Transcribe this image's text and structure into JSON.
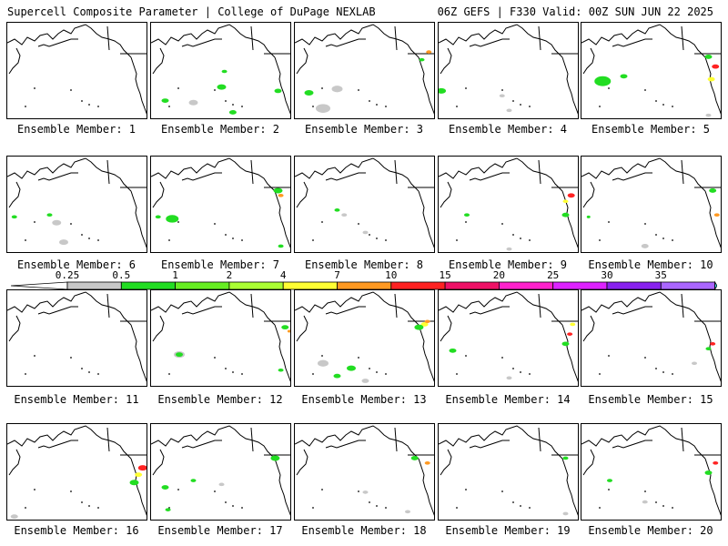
{
  "header": {
    "left": "Supercell Composite Parameter | College of DuPage NEXLAB",
    "right": "06Z GEFS | F330 Valid: 00Z SUN JUN 22 2025"
  },
  "colorbar": {
    "labels": [
      "0.25",
      "0.5",
      "1",
      "2",
      "4",
      "7",
      "10",
      "15",
      "20",
      "25",
      "30",
      "35"
    ],
    "colors": [
      "#ffffff",
      "#c8c8c8",
      "#22dd22",
      "#66ee22",
      "#aaff33",
      "#ffff33",
      "#ff9922",
      "#ff2222",
      "#ee1166",
      "#ff22cc",
      "#dd22ff",
      "#8822ee",
      "#aa66ff",
      "#33e0e8"
    ]
  },
  "members": [
    {
      "label": "Ensemble Member: 1",
      "blobs": []
    },
    {
      "label": "Ensemble Member: 2",
      "blobs": [
        [
          "#22dd22",
          0.52,
          0.5,
          3
        ],
        [
          "#22dd22",
          0.5,
          0.66,
          5
        ],
        [
          "#22dd22",
          0.1,
          0.8,
          4
        ],
        [
          "#c8c8c8",
          0.3,
          0.82,
          5
        ],
        [
          "#22dd22",
          0.9,
          0.7,
          4
        ],
        [
          "#22dd22",
          0.58,
          0.92,
          4
        ]
      ]
    },
    {
      "label": "Ensemble Member: 3",
      "blobs": [
        [
          "#ff9922",
          0.95,
          0.3,
          3
        ],
        [
          "#22dd22",
          0.9,
          0.38,
          3
        ],
        [
          "#c8c8c8",
          0.2,
          0.88,
          8
        ],
        [
          "#22dd22",
          0.1,
          0.72,
          5
        ],
        [
          "#c8c8c8",
          0.3,
          0.68,
          6
        ]
      ]
    },
    {
      "label": "Ensemble Member: 4",
      "blobs": [
        [
          "#22dd22",
          0.02,
          0.7,
          5
        ],
        [
          "#c8c8c8",
          0.5,
          0.9,
          3
        ],
        [
          "#c8c8c8",
          0.45,
          0.75,
          3
        ]
      ]
    },
    {
      "label": "Ensemble Member: 5",
      "blobs": [
        [
          "#ff2222",
          0.95,
          0.45,
          4
        ],
        [
          "#ffff33",
          0.92,
          0.58,
          4
        ],
        [
          "#22dd22",
          0.9,
          0.35,
          4
        ],
        [
          "#22dd22",
          0.15,
          0.6,
          9
        ],
        [
          "#22dd22",
          0.3,
          0.55,
          4
        ],
        [
          "#c8c8c8",
          0.9,
          0.95,
          3
        ]
      ]
    },
    {
      "label": "Ensemble Member: 6",
      "blobs": [
        [
          "#22dd22",
          0.3,
          0.6,
          3
        ],
        [
          "#c8c8c8",
          0.35,
          0.68,
          5
        ],
        [
          "#c8c8c8",
          0.4,
          0.88,
          5
        ],
        [
          "#22dd22",
          0.05,
          0.62,
          3
        ]
      ]
    },
    {
      "label": "Ensemble Member: 7",
      "blobs": [
        [
          "#22dd22",
          0.9,
          0.35,
          5
        ],
        [
          "#ff9922",
          0.92,
          0.4,
          3
        ],
        [
          "#22dd22",
          0.05,
          0.62,
          3
        ],
        [
          "#22dd22",
          0.15,
          0.64,
          7
        ],
        [
          "#22dd22",
          0.92,
          0.92,
          3
        ]
      ]
    },
    {
      "label": "Ensemble Member: 8",
      "blobs": [
        [
          "#22dd22",
          0.3,
          0.55,
          3
        ],
        [
          "#c8c8c8",
          0.35,
          0.6,
          3
        ],
        [
          "#c8c8c8",
          0.5,
          0.78,
          3
        ]
      ]
    },
    {
      "label": "Ensemble Member: 9",
      "blobs": [
        [
          "#ff2222",
          0.94,
          0.4,
          4
        ],
        [
          "#ffff33",
          0.9,
          0.46,
          3
        ],
        [
          "#22dd22",
          0.9,
          0.6,
          4
        ],
        [
          "#22dd22",
          0.2,
          0.6,
          3
        ],
        [
          "#c8c8c8",
          0.5,
          0.95,
          3
        ]
      ]
    },
    {
      "label": "Ensemble Member: 10",
      "blobs": [
        [
          "#22dd22",
          0.93,
          0.35,
          4
        ],
        [
          "#ff9922",
          0.96,
          0.6,
          3
        ],
        [
          "#c8c8c8",
          0.45,
          0.92,
          4
        ],
        [
          "#22dd22",
          0.05,
          0.62,
          2
        ]
      ]
    },
    {
      "label": "Ensemble Member: 11",
      "blobs": []
    },
    {
      "label": "Ensemble Member: 12",
      "blobs": [
        [
          "#22dd22",
          0.95,
          0.38,
          4
        ],
        [
          "#ff9922",
          0.98,
          0.42,
          2
        ],
        [
          "#c8c8c8",
          0.2,
          0.66,
          6
        ],
        [
          "#22dd22",
          0.2,
          0.66,
          4
        ],
        [
          "#22dd22",
          0.92,
          0.82,
          3
        ]
      ]
    },
    {
      "label": "Ensemble Member: 13",
      "blobs": [
        [
          "#ffff33",
          0.92,
          0.35,
          4
        ],
        [
          "#ff9922",
          0.94,
          0.32,
          3
        ],
        [
          "#22dd22",
          0.88,
          0.38,
          5
        ],
        [
          "#c8c8c8",
          0.2,
          0.75,
          6
        ],
        [
          "#22dd22",
          0.4,
          0.8,
          5
        ],
        [
          "#22dd22",
          0.3,
          0.88,
          4
        ],
        [
          "#c8c8c8",
          0.5,
          0.93,
          4
        ]
      ]
    },
    {
      "label": "Ensemble Member: 14",
      "blobs": [
        [
          "#ff2222",
          0.93,
          0.45,
          3
        ],
        [
          "#ffff33",
          0.95,
          0.35,
          3
        ],
        [
          "#22dd22",
          0.9,
          0.55,
          4
        ],
        [
          "#22dd22",
          0.1,
          0.62,
          4
        ],
        [
          "#c8c8c8",
          0.5,
          0.9,
          3
        ]
      ]
    },
    {
      "label": "Ensemble Member: 15",
      "blobs": [
        [
          "#ff2222",
          0.93,
          0.55,
          3
        ],
        [
          "#22dd22",
          0.9,
          0.6,
          3
        ],
        [
          "#c8c8c8",
          0.8,
          0.75,
          3
        ]
      ]
    },
    {
      "label": "Ensemble Member: 16",
      "blobs": [
        [
          "#ff2222",
          0.96,
          0.45,
          5
        ],
        [
          "#ffff33",
          0.93,
          0.52,
          4
        ],
        [
          "#22dd22",
          0.9,
          0.6,
          5
        ],
        [
          "#c8c8c8",
          0.05,
          0.95,
          4
        ]
      ]
    },
    {
      "label": "Ensemble Member: 17",
      "blobs": [
        [
          "#22dd22",
          0.88,
          0.35,
          5
        ],
        [
          "#22dd22",
          0.3,
          0.58,
          3
        ],
        [
          "#22dd22",
          0.1,
          0.65,
          4
        ],
        [
          "#c8c8c8",
          0.5,
          0.62,
          3
        ],
        [
          "#22dd22",
          0.12,
          0.88,
          3
        ]
      ]
    },
    {
      "label": "Ensemble Member: 18",
      "blobs": [
        [
          "#22dd22",
          0.85,
          0.35,
          4
        ],
        [
          "#ff9922",
          0.94,
          0.4,
          3
        ],
        [
          "#c8c8c8",
          0.5,
          0.7,
          3
        ],
        [
          "#c8c8c8",
          0.8,
          0.9,
          3
        ]
      ]
    },
    {
      "label": "Ensemble Member: 19",
      "blobs": [
        [
          "#c8c8c8",
          0.9,
          0.92,
          3
        ],
        [
          "#22dd22",
          0.9,
          0.35,
          3
        ]
      ]
    },
    {
      "label": "Ensemble Member: 20",
      "blobs": [
        [
          "#ff2222",
          0.95,
          0.4,
          3
        ],
        [
          "#22dd22",
          0.9,
          0.5,
          4
        ],
        [
          "#22dd22",
          0.2,
          0.58,
          3
        ],
        [
          "#c8c8c8",
          0.45,
          0.8,
          3
        ]
      ]
    }
  ]
}
